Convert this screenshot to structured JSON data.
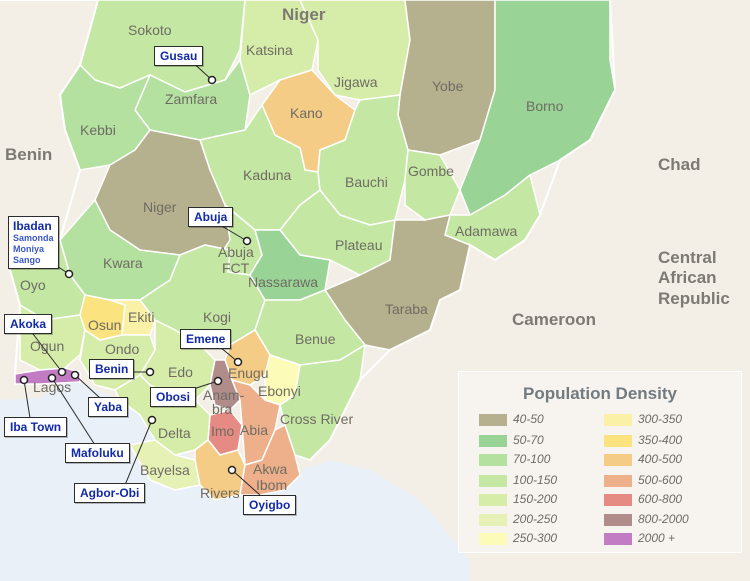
{
  "countries": [
    "Niger",
    "Benin",
    "Chad",
    "Central",
    "African",
    "Republic",
    "Cameroon"
  ],
  "states": [
    "Sokoto",
    "Katsina",
    "Jigawa",
    "Yobe",
    "Borno",
    "Zamfara",
    "Kano",
    "Kebbi",
    "Kaduna",
    "Bauchi",
    "Gombe",
    "Niger",
    "Adamawa",
    "Plateau",
    "Kwara",
    "Abuja",
    "FCT",
    "Nassarawa",
    "Oyo",
    "Taraba",
    "Osun",
    "Ekiti",
    "Kogi",
    "Benue",
    "Ogun",
    "Ondo",
    "Edo",
    "Enugu",
    "Ebonyi",
    "Lagos",
    "Anam-",
    "bra",
    "Cross River",
    "Delta",
    "Imo",
    "Abia",
    "Bayelsa",
    "Akwa",
    "Ibom",
    "Rivers"
  ],
  "cities": {
    "gusau": "Gusau",
    "abuja": "Abuja",
    "ibadan": "Ibadan",
    "ibadan_sub": [
      "Samonda",
      "Moniya",
      "Sango"
    ],
    "akoka": "Akoka",
    "emene": "Emene",
    "benin": "Benin",
    "obosi": "Obosi",
    "yaba": "Yaba",
    "iba_town": "Iba Town",
    "mafoluku": "Mafoluku",
    "agbor_obi": "Agbor-Obi",
    "oyigbo": "Oyigbo"
  },
  "legend": {
    "title": "Population Density",
    "items": [
      {
        "label": "40-50",
        "color": "#b5b08e"
      },
      {
        "label": "50-70",
        "color": "#99d396"
      },
      {
        "label": "70-100",
        "color": "#b4e0a0"
      },
      {
        "label": "100-150",
        "color": "#c5e7a4"
      },
      {
        "label": "150-200",
        "color": "#d6edaa"
      },
      {
        "label": "200-250",
        "color": "#e5f1b5"
      },
      {
        "label": "250-300",
        "color": "#fdfbb8"
      },
      {
        "label": "300-350",
        "color": "#fbf1a6"
      },
      {
        "label": "350-400",
        "color": "#fbe37f"
      },
      {
        "label": "400-500",
        "color": "#f5cc86"
      },
      {
        "label": "500-600",
        "color": "#eeb08a"
      },
      {
        "label": "600-800",
        "color": "#e58b84"
      },
      {
        "label": "800-2000",
        "color": "#b08c8b"
      },
      {
        "label": "2000 +",
        "color": "#c17cc3"
      }
    ]
  }
}
